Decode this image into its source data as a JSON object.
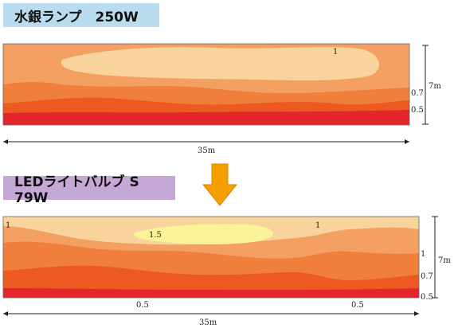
{
  "top_panel": {
    "title": "水銀ランプ　250W",
    "contours": {
      "inner": "1",
      "mid": "0.7",
      "outer": "0.5"
    },
    "height_label": "7m",
    "width_label": "35m"
  },
  "arrow": {
    "color": "#f5a000"
  },
  "bottom_panel": {
    "title": "LEDライトバルブ S　79W",
    "contours": {
      "peak": "1.5",
      "left_edge": "1",
      "right_top": "1",
      "right_mid": "1",
      "right_07": "0.7",
      "right_05": "0.5",
      "bottom_left": "0.5",
      "bottom_right": "0.5"
    },
    "height_label": "7m",
    "width_label": "35m"
  },
  "colors": {
    "band_05": "#e3262c",
    "band_07": "#ec5a22",
    "band_08": "#f07f3c",
    "band_09": "#f3a062",
    "band_1": "#f8d39c",
    "band_15": "#faf398"
  }
}
